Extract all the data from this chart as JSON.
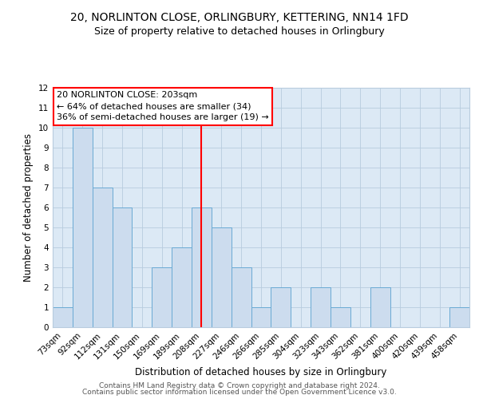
{
  "title": "20, NORLINTON CLOSE, ORLINGBURY, KETTERING, NN14 1FD",
  "subtitle": "Size of property relative to detached houses in Orlingbury",
  "xlabel": "Distribution of detached houses by size in Orlingbury",
  "ylabel": "Number of detached properties",
  "bar_labels": [
    "73sqm",
    "92sqm",
    "112sqm",
    "131sqm",
    "150sqm",
    "169sqm",
    "189sqm",
    "208sqm",
    "227sqm",
    "246sqm",
    "266sqm",
    "285sqm",
    "304sqm",
    "323sqm",
    "343sqm",
    "362sqm",
    "381sqm",
    "400sqm",
    "420sqm",
    "439sqm",
    "458sqm"
  ],
  "bar_values": [
    1,
    10,
    7,
    6,
    0,
    3,
    4,
    6,
    5,
    3,
    1,
    2,
    0,
    2,
    1,
    0,
    2,
    0,
    0,
    0,
    1
  ],
  "ylim": [
    0,
    12
  ],
  "yticks": [
    0,
    1,
    2,
    3,
    4,
    5,
    6,
    7,
    8,
    9,
    10,
    11,
    12
  ],
  "bar_color": "#ccdcee",
  "bar_edge_color": "#6aaad4",
  "vline_index": 7,
  "vline_color": "red",
  "annotation_title": "20 NORLINTON CLOSE: 203sqm",
  "annotation_line1": "← 64% of detached houses are smaller (34)",
  "annotation_line2": "36% of semi-detached houses are larger (19) →",
  "annotation_box_color": "white",
  "annotation_box_edge": "red",
  "footer1": "Contains HM Land Registry data © Crown copyright and database right 2024.",
  "footer2": "Contains public sector information licensed under the Open Government Licence v3.0.",
  "bg_color": "white",
  "plot_bg_color": "#dce9f5",
  "grid_color": "#b8ccde",
  "title_fontsize": 10,
  "subtitle_fontsize": 9,
  "axis_label_fontsize": 8.5,
  "tick_fontsize": 7.5,
  "footer_fontsize": 6.5,
  "annotation_fontsize": 8
}
